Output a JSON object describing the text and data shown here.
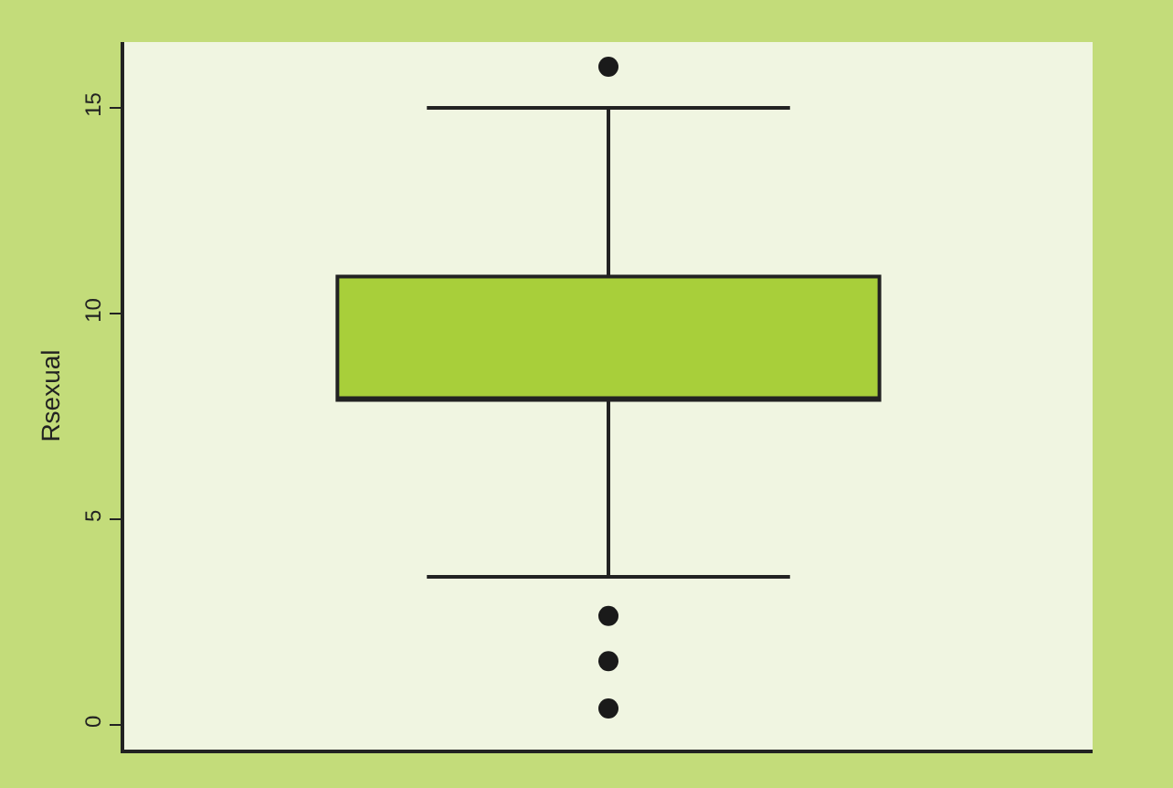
{
  "chart_data": {
    "type": "box",
    "ylabel": "Rsexual",
    "categories": [
      null
    ],
    "series": [
      {
        "color": "#a8cf3a",
        "boxes": [
          {
            "low": 3.6,
            "q1": 7.9,
            "median": 7.9,
            "q3": 10.9,
            "high": 15.0,
            "outliers": [
              16.0,
              2.65,
              1.55,
              0.4
            ]
          }
        ]
      }
    ],
    "ylim": [
      -0.6,
      16.6
    ],
    "yticks": [
      0,
      5,
      10,
      15
    ],
    "grid": false
  }
}
